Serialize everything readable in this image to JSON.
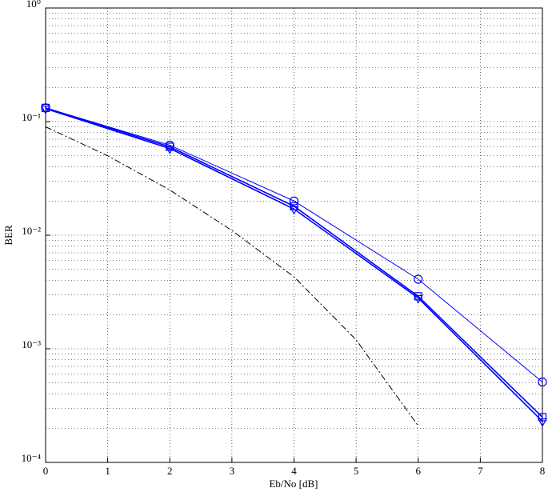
{
  "chart_data": {
    "type": "line",
    "x_label": "Eb/No [dB]",
    "y_label": "BER",
    "xlim": [
      0,
      8
    ],
    "xticks": [
      0,
      1,
      2,
      3,
      4,
      5,
      6,
      7,
      8
    ],
    "ylim": [
      0.0001,
      1
    ],
    "yticks": [
      {
        "value": 0.0001,
        "label": "10⁻⁴"
      },
      {
        "value": 0.001,
        "label": "10⁻³"
      },
      {
        "value": 0.01,
        "label": "10⁻²"
      },
      {
        "value": 0.1,
        "label": "10⁻¹"
      },
      {
        "value": 1,
        "label": "10⁰"
      }
    ],
    "y_scale": "log",
    "grid": true,
    "minor_grid": true,
    "series": [
      {
        "color": "#0000ff",
        "marker": "circle",
        "line_width": 1,
        "dash": "solid",
        "x": [
          0,
          2,
          4,
          6,
          8
        ],
        "values": [
          0.132,
          0.062,
          0.02,
          0.0041,
          0.00051
        ]
      },
      {
        "color": "#0000ff",
        "marker": "square",
        "line_width": 1.6,
        "dash": "solid",
        "x": [
          0,
          2,
          4,
          6,
          8
        ],
        "values": [
          0.132,
          0.06,
          0.018,
          0.0029,
          0.00025
        ]
      },
      {
        "color": "#0000ff",
        "marker": "triangle",
        "line_width": 1.6,
        "dash": "solid",
        "x": [
          0,
          2,
          4,
          6,
          8
        ],
        "values": [
          0.13,
          0.058,
          0.017,
          0.0028,
          0.00023
        ]
      },
      {
        "color": "#000000",
        "marker": "none",
        "line_width": 1,
        "dash": "dashdot",
        "x": [
          0,
          1,
          2,
          3,
          4,
          5,
          6
        ],
        "values": [
          0.09,
          0.05,
          0.025,
          0.011,
          0.0043,
          0.0012,
          0.00021
        ]
      }
    ]
  }
}
